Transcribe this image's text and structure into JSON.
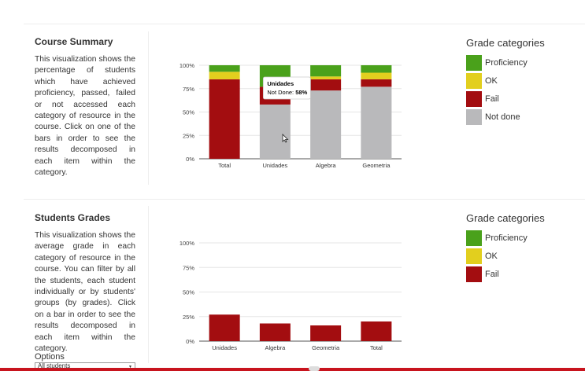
{
  "course_summary": {
    "title": "Course Summary",
    "description": "This visualization shows the percentage of students which have achieved proficiency, passed, failed or not accessed each category of resource in the course. Click on one of the bars in order to see the results decomposed in each item within the category."
  },
  "students_grades": {
    "title": "Students Grades",
    "description": "This visualization shows the average grade in each category of resource in the course. You can filter by all the students, each student individually or by students' groups (by grades). Click on a bar in order to see the results decomposed in each item within the category.",
    "options_label": "Options",
    "filter_value": "All students"
  },
  "legend_summary": {
    "title": "Grade categories",
    "items": [
      {
        "label": "Proficiency",
        "color": "#4aa11b"
      },
      {
        "label": "OK",
        "color": "#e2cf1e"
      },
      {
        "label": "Fail",
        "color": "#a30d10"
      },
      {
        "label": "Not done",
        "color": "#b9b9bb"
      }
    ]
  },
  "legend_grades": {
    "title": "Grade categories",
    "items": [
      {
        "label": "Proficiency",
        "color": "#4aa11b"
      },
      {
        "label": "OK",
        "color": "#e2cf1e"
      },
      {
        "label": "Fail",
        "color": "#a30d10"
      }
    ]
  },
  "chart_data": [
    {
      "type": "bar",
      "stacked": true,
      "categories": [
        "Total",
        "Unidades",
        "Algebra",
        "Geometria"
      ],
      "series": [
        {
          "name": "Not done",
          "color": "#b9b9bb",
          "values": [
            0,
            58,
            73,
            77
          ]
        },
        {
          "name": "Fail",
          "color": "#a30d10",
          "values": [
            85,
            19,
            12,
            8
          ]
        },
        {
          "name": "OK",
          "color": "#e2cf1e",
          "values": [
            8,
            0,
            3,
            7
          ]
        },
        {
          "name": "Proficiency",
          "color": "#4aa11b",
          "values": [
            7,
            23,
            12,
            8
          ]
        }
      ],
      "yticks": [
        "0%",
        "25%",
        "50%",
        "75%",
        "100%"
      ],
      "ylim": [
        0,
        100
      ],
      "tooltip": {
        "category": "Unidades",
        "label": "Not Done:",
        "value": "58%"
      }
    },
    {
      "type": "bar",
      "categories": [
        "Unidades",
        "Algebra",
        "Geometria",
        "Total"
      ],
      "series": [
        {
          "name": "Fail",
          "color": "#a30d10",
          "values": [
            27,
            18,
            16,
            20
          ]
        }
      ],
      "yticks": [
        "0%",
        "25%",
        "50%",
        "75%",
        "100%"
      ],
      "ylim": [
        0,
        100
      ]
    }
  ]
}
